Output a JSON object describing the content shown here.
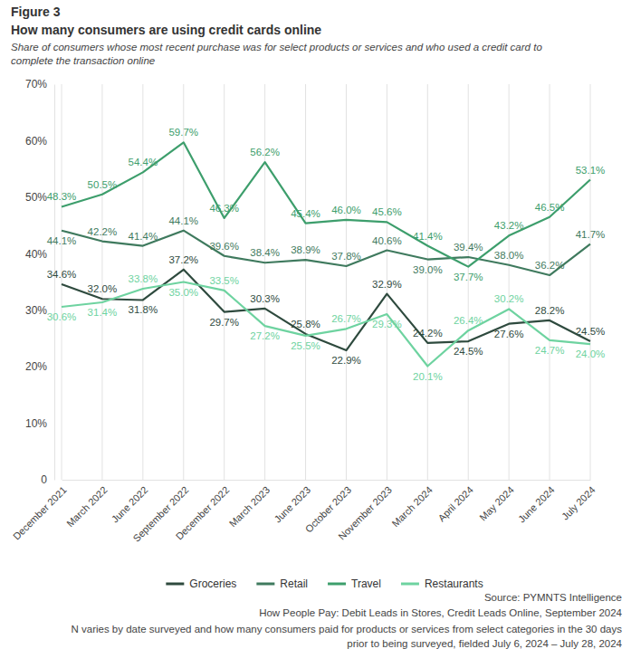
{
  "chart_data": {
    "type": "line",
    "title": "Figure 3",
    "subtitle": "How many consumers are using credit cards online",
    "caption": [
      "Share of consumers whose most recent purchase was for select products or services and who used a credit card to",
      "complete the transaction online"
    ],
    "source": [
      "Source: PYMNTS Intelligence",
      "How People Pay: Debit Leads in Stores, Credit Leads Online, September 2024",
      "N varies by date surveyed and how many consumers paid for products or services from select categories in the 30 days",
      "prior to being surveyed, fielded July 6, 2024 – July 28, 2024"
    ],
    "categories": [
      "December 2021",
      "March 2022",
      "June 2022",
      "September 2022",
      "December 2022",
      "March 2023",
      "June 2023",
      "October 2023",
      "November 2023",
      "March 2024",
      "April 2024",
      "May 2024",
      "June 2024",
      "July 2024"
    ],
    "series": [
      {
        "name": "Groceries",
        "color": "#2e4a3e",
        "values": [
          34.6,
          32.0,
          31.8,
          37.2,
          29.7,
          30.3,
          25.8,
          22.9,
          32.9,
          24.2,
          24.5,
          27.6,
          28.2,
          24.5
        ],
        "value_labels": [
          "34.6%",
          "32.0%",
          "31.8%",
          "37.2%",
          "29.7%",
          "30.3%",
          "25.8%",
          "22.9%",
          "32.9%",
          "24.2%",
          "24.5%",
          "27.6%",
          "28.2%",
          "24.5%"
        ]
      },
      {
        "name": "Retail",
        "color": "#3f7a5e",
        "values": [
          44.1,
          42.2,
          41.4,
          44.1,
          39.6,
          38.4,
          38.9,
          37.8,
          40.6,
          39.0,
          39.4,
          38.0,
          36.2,
          41.7
        ],
        "value_labels": [
          "44.1%",
          "42.2%",
          "41.4%",
          "44.1%",
          "39.6%",
          "38.4%",
          "38.9%",
          "37.8%",
          "40.6%",
          "39.0%",
          "39.4%",
          "38.0%",
          "36.2%",
          "41.7%"
        ]
      },
      {
        "name": "Travel",
        "color": "#3d9e6c",
        "values": [
          48.3,
          50.5,
          54.4,
          59.7,
          46.3,
          56.2,
          45.4,
          46.0,
          45.6,
          41.4,
          37.7,
          43.2,
          46.5,
          53.1
        ],
        "value_labels": [
          "48.3%",
          "50.5%",
          "54.4%",
          "59.7%",
          "46.3%",
          "56.2%",
          "45.4%",
          "46.0%",
          "45.6%",
          "41.4%",
          "37.7%",
          "43.2%",
          "46.5%",
          "53.1%"
        ]
      },
      {
        "name": "Restaurants",
        "color": "#6ed3a0",
        "values": [
          30.6,
          31.4,
          33.8,
          35.0,
          33.5,
          27.2,
          25.5,
          26.7,
          29.3,
          20.1,
          26.4,
          30.2,
          24.7,
          24.0
        ],
        "value_labels": [
          "30.6%",
          "31.4%",
          "33.8%",
          "35.0%",
          "33.5%",
          "27.2%",
          "25.5%",
          "26.7%",
          "29.3%",
          "20.1%",
          "26.4%",
          "30.2%",
          "24.7%",
          "24.0%"
        ]
      }
    ],
    "ylim": [
      0,
      70
    ],
    "yticks": [
      0,
      {
        "value": 10,
        "label": "10%"
      },
      {
        "value": 20,
        "label": "20%"
      },
      {
        "value": 30,
        "label": "30%"
      },
      {
        "value": 40,
        "label": "40%"
      },
      {
        "value": 50,
        "label": "50%"
      },
      {
        "value": 60,
        "label": "60%"
      },
      {
        "value": 70,
        "label": "70%"
      }
    ],
    "grid": true,
    "legend": "bottom",
    "data_labels": true
  }
}
